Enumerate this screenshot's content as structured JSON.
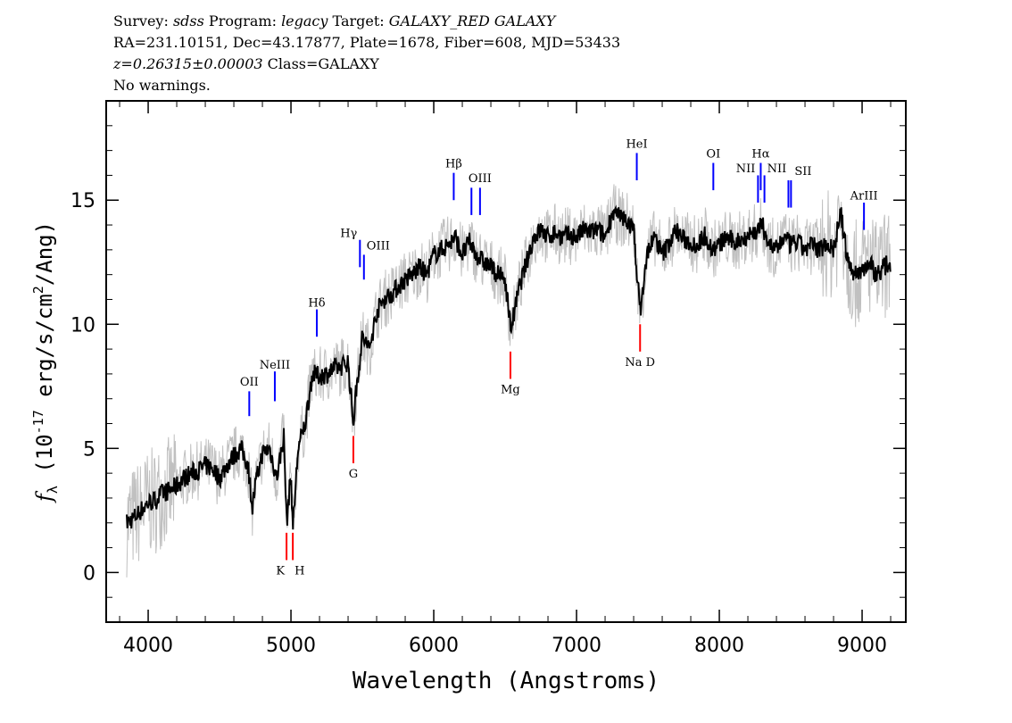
{
  "header": {
    "survey_label": "Survey:",
    "survey": "sdss",
    "program_label": "Program:",
    "program": "legacy",
    "target_label": "Target:",
    "target": "GALAXY_RED GALAXY",
    "line2": "RA=231.10151, Dec=43.17877, Plate=1678, Fiber=608, MJD=53433",
    "redshift": "z=0.26315±0.00003",
    "class": "Class=GALAXY",
    "warnings": "No warnings."
  },
  "chart_data": {
    "type": "line",
    "xlabel": "Wavelength (Angstroms)",
    "ylabel": {
      "symbol": "f",
      "sub": "λ",
      "pre": " (10",
      "exp1": "-17",
      "mid": " erg/s/cm",
      "exp2": "2",
      "post": "/Ang)"
    },
    "xlim": [
      3706,
      9306
    ],
    "ylim": [
      -2,
      19
    ],
    "xticks": [
      4000,
      5000,
      6000,
      7000,
      8000,
      9000
    ],
    "yticks": [
      0,
      5,
      10,
      15
    ],
    "grid": false,
    "colors": {
      "flux": "#000000",
      "error": "#c0c0c0",
      "emission": "#0000ff",
      "absorption": "#ff0000"
    },
    "spectrum": {
      "x": [
        3850,
        3900,
        3950,
        4000,
        4050,
        4100,
        4150,
        4200,
        4250,
        4300,
        4350,
        4400,
        4450,
        4500,
        4550,
        4600,
        4650,
        4700,
        4730,
        4750,
        4800,
        4850,
        4900,
        4950,
        4970,
        5000,
        5013,
        5050,
        5100,
        5150,
        5200,
        5250,
        5300,
        5350,
        5400,
        5437,
        5450,
        5500,
        5550,
        5600,
        5650,
        5700,
        5750,
        5800,
        5850,
        5900,
        5950,
        6000,
        6050,
        6100,
        6150,
        6200,
        6250,
        6300,
        6350,
        6400,
        6450,
        6500,
        6540,
        6600,
        6650,
        6700,
        6750,
        6800,
        6850,
        6900,
        6950,
        7000,
        7050,
        7100,
        7150,
        7200,
        7250,
        7300,
        7350,
        7400,
        7445,
        7500,
        7550,
        7600,
        7650,
        7700,
        7750,
        7800,
        7850,
        7900,
        7950,
        8000,
        8050,
        8100,
        8150,
        8200,
        8250,
        8300,
        8350,
        8400,
        8450,
        8500,
        8550,
        8600,
        8650,
        8700,
        8750,
        8800,
        8850,
        8900,
        8950,
        9000,
        9050,
        9100,
        9150,
        9200
      ],
      "flux": [
        2.0,
        2.2,
        2.5,
        2.8,
        2.9,
        3.2,
        3.3,
        3.5,
        3.8,
        4.0,
        4.1,
        4.3,
        4.2,
        3.8,
        4.3,
        4.7,
        5.0,
        4.3,
        2.6,
        3.5,
        4.8,
        5.0,
        3.8,
        5.5,
        2.0,
        4.0,
        1.8,
        5.0,
        6.0,
        8.0,
        7.9,
        8.0,
        8.2,
        8.3,
        8.5,
        6.0,
        7.0,
        9.5,
        9.0,
        10.5,
        11.0,
        11.2,
        11.5,
        11.8,
        12.0,
        12.3,
        12.0,
        12.8,
        13.0,
        13.2,
        13.5,
        12.8,
        13.3,
        12.8,
        12.5,
        12.3,
        12.0,
        11.8,
        9.8,
        11.5,
        12.5,
        13.5,
        13.8,
        13.5,
        13.7,
        13.5,
        13.6,
        13.5,
        13.8,
        13.7,
        13.8,
        13.5,
        14.5,
        14.3,
        14.2,
        13.8,
        10.5,
        13.0,
        13.5,
        12.8,
        13.3,
        13.8,
        13.4,
        13.3,
        13.2,
        13.6,
        13.0,
        13.2,
        13.5,
        13.3,
        13.4,
        13.6,
        13.7,
        14.0,
        13.2,
        13.0,
        13.5,
        13.2,
        13.3,
        13.0,
        13.2,
        13.0,
        13.3,
        13.0,
        14.5,
        12.5,
        12.0,
        12.2,
        12.5,
        12.0,
        12.3,
        12.5
      ]
    },
    "lines": [
      {
        "label": "OII",
        "wavelength": 4708,
        "type": "emission",
        "top": 7.3,
        "bottom": 6.3,
        "label_at": 7.7
      },
      {
        "label": "NeIII",
        "wavelength": 4887,
        "type": "emission",
        "top": 8.1,
        "bottom": 6.9,
        "label_at": 8.4
      },
      {
        "label": "Hδ",
        "wavelength": 5181,
        "type": "emission",
        "top": 10.6,
        "bottom": 9.5,
        "label_at": 10.9
      },
      {
        "label": "Hγ",
        "wavelength": 5483,
        "type": "emission",
        "top": 13.4,
        "bottom": 12.3,
        "label_at": 13.7
      },
      {
        "label": "OIII",
        "wavelength": 5511,
        "type": "emission",
        "top": 12.8,
        "bottom": 11.8,
        "label_at": 13.2
      },
      {
        "label": "Hβ",
        "wavelength": 6140,
        "type": "emission",
        "top": 16.1,
        "bottom": 15.0,
        "label_at": 16.5
      },
      {
        "label": "",
        "wavelength": 6264,
        "type": "emission",
        "top": 15.5,
        "bottom": 14.4,
        "label_at": null
      },
      {
        "label": "OIII",
        "wavelength": 6324,
        "type": "emission",
        "top": 15.5,
        "bottom": 14.4,
        "label_at": 15.9
      },
      {
        "label": "HeI",
        "wavelength": 7422,
        "type": "emission",
        "top": 16.9,
        "bottom": 15.8,
        "label_at": 17.3
      },
      {
        "label": "OI",
        "wavelength": 7958,
        "type": "emission",
        "top": 16.5,
        "bottom": 15.4,
        "label_at": 16.9
      },
      {
        "label": "NII",
        "wavelength": 8271,
        "type": "emission",
        "top": 16.0,
        "bottom": 14.9,
        "label_at": 16.3
      },
      {
        "label": "Hα",
        "wavelength": 8290,
        "type": "emission",
        "top": 16.5,
        "bottom": 15.4,
        "label_at": 16.9
      },
      {
        "label": "NII",
        "wavelength": 8316,
        "type": "emission",
        "top": 16.0,
        "bottom": 14.9,
        "label_at": 16.3
      },
      {
        "label": "",
        "wavelength": 8484,
        "type": "emission",
        "top": 15.8,
        "bottom": 14.7,
        "label_at": null
      },
      {
        "label": "SII",
        "wavelength": 8502,
        "type": "emission",
        "top": 15.8,
        "bottom": 14.7,
        "label_at": 16.2
      },
      {
        "label": "ArIII",
        "wavelength": 9013,
        "type": "emission",
        "top": 14.9,
        "bottom": 13.8,
        "label_at": 15.2
      },
      {
        "label": "K",
        "wavelength": 4969,
        "type": "absorption",
        "top": 1.6,
        "bottom": 0.5,
        "label_at": 0.1
      },
      {
        "label": "H",
        "wavelength": 5013,
        "type": "absorption",
        "top": 1.6,
        "bottom": 0.5,
        "label_at": 0.1
      },
      {
        "label": "G",
        "wavelength": 5437,
        "type": "absorption",
        "top": 5.5,
        "bottom": 4.4,
        "label_at": 4.0
      },
      {
        "label": "Mg",
        "wavelength": 6537,
        "type": "absorption",
        "top": 8.9,
        "bottom": 7.8,
        "label_at": 7.4
      },
      {
        "label": "Na D",
        "wavelength": 7445,
        "type": "absorption",
        "top": 10.0,
        "bottom": 8.9,
        "label_at": 8.5
      }
    ]
  }
}
